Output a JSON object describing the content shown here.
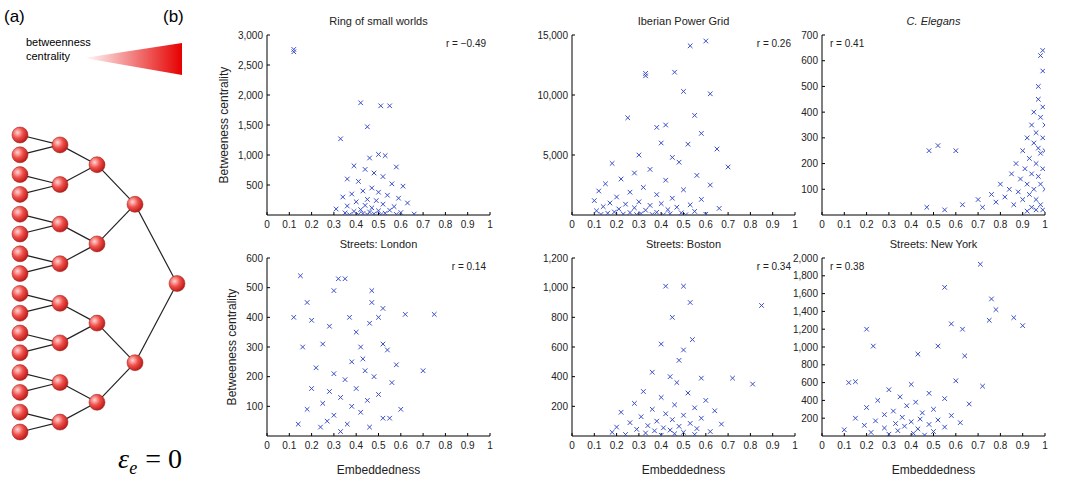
{
  "panel_labels": [
    "(a)",
    "(b)"
  ],
  "diagram": {
    "title": "betweenness centrality",
    "caption": {
      "symbol": "ε",
      "subscript": "e",
      "text": "= 0"
    }
  },
  "chart_data": [
    {
      "type": "scatter",
      "title": "Ring of small worlds",
      "annotations": [
        "r = −0.49"
      ],
      "y_label": "Betweeness centrality",
      "xlim": [
        0,
        1
      ],
      "xticks": [
        0,
        0.1,
        0.2,
        0.3,
        0.4,
        0.5,
        0.6,
        0.7,
        0.8,
        0.9,
        1
      ],
      "ylim": [
        0,
        3000
      ],
      "yticks": [
        500,
        {
          "value": 1000,
          "label": "1,000"
        },
        {
          "value": 1500,
          "label": "1,500"
        },
        {
          "value": 2000,
          "label": "2,000"
        },
        {
          "value": 2500,
          "label": "2,500"
        },
        {
          "value": 3000,
          "label": "3,000"
        }
      ],
      "color": "#3a4ec8",
      "marker": "x",
      "x": [
        0.12,
        0.12,
        0.42,
        0.51,
        0.55,
        0.33,
        0.45,
        0.5,
        0.46,
        0.53,
        0.39,
        0.44,
        0.58,
        0.48,
        0.52,
        0.36,
        0.41,
        0.56,
        0.61,
        0.47,
        0.43,
        0.5,
        0.38,
        0.54,
        0.34,
        0.59,
        0.45,
        0.49,
        0.4,
        0.63,
        0.52,
        0.44,
        0.36,
        0.57,
        0.47,
        0.31,
        0.42,
        0.55,
        0.5,
        0.39,
        0.46,
        0.6,
        0.35,
        0.53,
        0.43,
        0.48,
        0.66,
        0.41,
        0.58,
        0.37,
        0.51,
        0.45
      ],
      "values": [
        2760,
        2720,
        1870,
        1820,
        1820,
        1270,
        1470,
        1010,
        950,
        990,
        820,
        760,
        800,
        700,
        640,
        600,
        560,
        520,
        480,
        450,
        400,
        380,
        350,
        330,
        300,
        280,
        260,
        240,
        220,
        200,
        180,
        160,
        150,
        140,
        120,
        100,
        90,
        80,
        70,
        60,
        50,
        40,
        35,
        30,
        25,
        20,
        15,
        10,
        10,
        5,
        5,
        5
      ]
    },
    {
      "type": "scatter",
      "title": "Iberian Power Grid",
      "annotations": [
        "r = 0.26"
      ],
      "xlim": [
        0,
        1
      ],
      "xticks": [
        0,
        0.1,
        0.2,
        0.3,
        0.4,
        0.5,
        0.6,
        0.7,
        0.8,
        0.9,
        1
      ],
      "ylim": [
        0,
        15000
      ],
      "yticks": [
        {
          "value": 5000,
          "label": "5,000"
        },
        {
          "value": 10000,
          "label": "10,000"
        },
        {
          "value": 15000,
          "label": "15,000"
        }
      ],
      "color": "#3a4ec8",
      "marker": "x",
      "x": [
        0.33,
        0.33,
        0.6,
        0.53,
        0.46,
        0.5,
        0.62,
        0.25,
        0.55,
        0.42,
        0.38,
        0.58,
        0.4,
        0.52,
        0.65,
        0.3,
        0.45,
        0.18,
        0.48,
        0.7,
        0.35,
        0.28,
        0.56,
        0.22,
        0.42,
        0.15,
        0.62,
        0.32,
        0.12,
        0.5,
        0.26,
        0.38,
        0.2,
        0.45,
        0.58,
        0.1,
        0.3,
        0.17,
        0.4,
        0.24,
        0.53,
        0.35,
        0.14,
        0.47,
        0.28,
        0.66,
        0.21,
        0.43,
        0.33,
        0.11,
        0.55,
        0.19,
        0.38,
        0.26,
        0.49,
        0.16,
        0.31,
        0.44,
        0.23,
        0.6,
        0.13,
        0.36,
        0.29,
        0.51,
        0.41
      ],
      "values": [
        11800,
        11600,
        14500,
        14100,
        11900,
        10300,
        10100,
        8100,
        8300,
        7500,
        7300,
        6800,
        6000,
        5900,
        5500,
        5000,
        4800,
        4300,
        4400,
        4000,
        3800,
        3500,
        3300,
        3000,
        2900,
        2600,
        2500,
        2300,
        2000,
        2100,
        1900,
        1700,
        1500,
        1400,
        1300,
        1200,
        1100,
        1000,
        950,
        900,
        850,
        800,
        700,
        650,
        600,
        550,
        500,
        450,
        400,
        350,
        300,
        250,
        220,
        200,
        180,
        150,
        120,
        100,
        80,
        60,
        50,
        40,
        30,
        20,
        10
      ]
    },
    {
      "type": "scatter",
      "title": "C. Elegans",
      "annotations": [
        "r = 0.41"
      ],
      "xlim": [
        0,
        1
      ],
      "xticks": [
        0,
        0.1,
        0.2,
        0.3,
        0.4,
        0.5,
        0.6,
        0.7,
        0.8,
        0.9,
        1
      ],
      "ylim": [
        0,
        700
      ],
      "yticks": [
        100,
        200,
        300,
        400,
        500,
        600,
        700
      ],
      "color": "#3a4ec8",
      "marker": "x",
      "x": [
        0.52,
        0.48,
        0.6,
        0.47,
        0.55,
        0.63,
        0.7,
        0.72,
        0.76,
        0.78,
        0.8,
        0.82,
        0.84,
        0.85,
        0.86,
        0.87,
        0.88,
        0.89,
        0.9,
        0.9,
        0.91,
        0.92,
        0.92,
        0.93,
        0.93,
        0.94,
        0.94,
        0.95,
        0.95,
        0.95,
        0.96,
        0.96,
        0.96,
        0.97,
        0.97,
        0.97,
        0.97,
        0.98,
        0.98,
        0.98,
        0.98,
        0.99,
        0.99,
        0.99,
        0.99,
        0.99,
        1.0,
        1.0,
        1.0,
        0.96,
        0.94,
        0.98,
        0.92,
        0.99
      ],
      "values": [
        270,
        250,
        250,
        30,
        20,
        40,
        60,
        30,
        80,
        50,
        120,
        70,
        100,
        160,
        40,
        200,
        90,
        140,
        250,
        60,
        180,
        300,
        120,
        220,
        80,
        350,
        160,
        280,
        100,
        400,
        200,
        320,
        60,
        450,
        150,
        260,
        500,
        380,
        240,
        120,
        620,
        300,
        560,
        180,
        420,
        640,
        350,
        250,
        100,
        20,
        30,
        40,
        15,
        20
      ]
    },
    {
      "type": "scatter",
      "title": "Streets: London",
      "annotations": [
        "r = 0.14"
      ],
      "x_label": "Embeddedness",
      "y_label": "Betweeness centrality",
      "xlim": [
        0,
        1
      ],
      "xticks": [
        0,
        0.1,
        0.2,
        0.3,
        0.4,
        0.5,
        0.6,
        0.7,
        0.8,
        0.9,
        1
      ],
      "ylim": [
        0,
        600
      ],
      "yticks": [
        100,
        200,
        300,
        400,
        500,
        600
      ],
      "color": "#3a4ec8",
      "marker": "x",
      "x": [
        0.15,
        0.32,
        0.35,
        0.3,
        0.18,
        0.2,
        0.12,
        0.37,
        0.47,
        0.47,
        0.52,
        0.5,
        0.62,
        0.75,
        0.28,
        0.4,
        0.46,
        0.52,
        0.16,
        0.25,
        0.42,
        0.54,
        0.43,
        0.38,
        0.58,
        0.7,
        0.22,
        0.3,
        0.48,
        0.44,
        0.35,
        0.56,
        0.2,
        0.4,
        0.28,
        0.5,
        0.33,
        0.45,
        0.25,
        0.38,
        0.18,
        0.6,
        0.42,
        0.3,
        0.52,
        0.14,
        0.36,
        0.24,
        0.46,
        0.33,
        0.55,
        0.27
      ],
      "values": [
        540,
        530,
        530,
        490,
        450,
        390,
        400,
        400,
        490,
        450,
        430,
        400,
        410,
        410,
        370,
        350,
        380,
        310,
        300,
        310,
        300,
        290,
        260,
        250,
        240,
        220,
        230,
        210,
        200,
        220,
        190,
        180,
        160,
        160,
        150,
        140,
        130,
        120,
        110,
        100,
        90,
        90,
        80,
        70,
        60,
        40,
        40,
        30,
        30,
        15,
        60,
        50
      ]
    },
    {
      "type": "scatter",
      "title": "Streets: Boston",
      "annotations": [
        "r = 0.34"
      ],
      "x_label": "Embeddedness",
      "xlim": [
        0,
        1
      ],
      "xticks": [
        0,
        0.1,
        0.2,
        0.3,
        0.4,
        0.5,
        0.6,
        0.7,
        0.8,
        0.9,
        1
      ],
      "ylim": [
        0,
        1200
      ],
      "yticks": [
        200,
        400,
        600,
        800,
        {
          "value": 1000,
          "label": "1,000"
        },
        {
          "value": 1200,
          "label": "1,200"
        }
      ],
      "color": "#3a4ec8",
      "marker": "x",
      "x": [
        0.42,
        0.5,
        0.53,
        0.85,
        0.45,
        0.4,
        0.5,
        0.54,
        0.48,
        0.36,
        0.44,
        0.58,
        0.72,
        0.81,
        0.47,
        0.32,
        0.52,
        0.4,
        0.6,
        0.28,
        0.46,
        0.55,
        0.36,
        0.64,
        0.22,
        0.42,
        0.5,
        0.31,
        0.58,
        0.45,
        0.38,
        0.26,
        0.53,
        0.67,
        0.34,
        0.48,
        0.2,
        0.41,
        0.56,
        0.29,
        0.44,
        0.37,
        0.62,
        0.18,
        0.5,
        0.33,
        0.46,
        0.24,
        0.55,
        0.4
      ],
      "values": [
        1010,
        1010,
        900,
        880,
        800,
        620,
        580,
        650,
        510,
        430,
        400,
        390,
        390,
        350,
        360,
        300,
        290,
        260,
        240,
        220,
        210,
        190,
        180,
        170,
        160,
        150,
        140,
        130,
        120,
        110,
        100,
        90,
        85,
        80,
        70,
        65,
        60,
        55,
        50,
        45,
        40,
        35,
        30,
        25,
        25,
        20,
        15,
        10,
        10,
        5
      ]
    },
    {
      "type": "scatter",
      "title": "Streets: New York",
      "annotations": [
        "r = 0.38"
      ],
      "x_label": "Embeddedness",
      "xlim": [
        0,
        1
      ],
      "xticks": [
        0,
        0.1,
        0.2,
        0.3,
        0.4,
        0.5,
        0.6,
        0.7,
        0.8,
        0.9,
        1
      ],
      "ylim": [
        0,
        2000
      ],
      "yticks": [
        200,
        400,
        600,
        800,
        {
          "value": 1000,
          "label": "1,000"
        },
        {
          "value": 1200,
          "label": "1,200"
        },
        {
          "value": 1400,
          "label": "1,400"
        },
        {
          "value": 1600,
          "label": "1,600"
        },
        {
          "value": 1800,
          "label": "1,800"
        },
        {
          "value": 2000,
          "label": "2,000"
        }
      ],
      "color": "#3a4ec8",
      "marker": "x",
      "x": [
        0.71,
        0.55,
        0.76,
        0.78,
        0.9,
        0.86,
        0.75,
        0.63,
        0.58,
        0.2,
        0.23,
        0.52,
        0.43,
        0.64,
        0.15,
        0.12,
        0.4,
        0.6,
        0.72,
        0.3,
        0.48,
        0.35,
        0.55,
        0.25,
        0.42,
        0.66,
        0.38,
        0.2,
        0.5,
        0.32,
        0.45,
        0.28,
        0.58,
        0.36,
        0.15,
        0.44,
        0.52,
        0.24,
        0.4,
        0.62,
        0.33,
        0.48,
        0.19,
        0.37,
        0.55,
        0.28,
        0.43,
        0.1,
        0.34,
        0.5,
        0.22,
        0.41,
        0.3,
        0.46
      ],
      "values": [
        1930,
        1670,
        1540,
        1420,
        1240,
        1330,
        1300,
        1200,
        1260,
        1200,
        1010,
        1010,
        920,
        900,
        610,
        600,
        580,
        620,
        560,
        520,
        480,
        440,
        420,
        400,
        380,
        360,
        340,
        320,
        300,
        280,
        260,
        240,
        230,
        210,
        200,
        190,
        180,
        170,
        160,
        150,
        140,
        130,
        120,
        110,
        100,
        90,
        80,
        70,
        60,
        50,
        40,
        30,
        20,
        10
      ]
    }
  ]
}
